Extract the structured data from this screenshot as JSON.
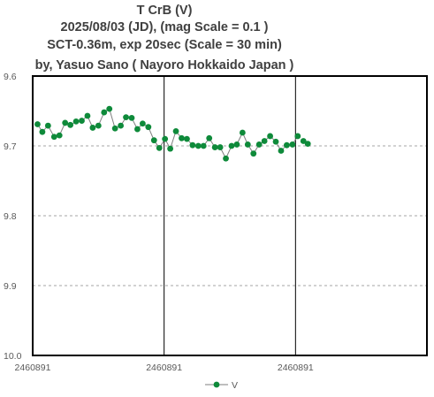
{
  "chart_data": {
    "type": "line",
    "title_lines": [
      "T CrB  (V)",
      "2025/08/03 (JD),   (mag Scale = 0.1 )",
      "SCT-0.36m, exp 20sec (Scale = 30 min)",
      "by, Yasuo Sano ( Nayoro Hokkaido Japan )"
    ],
    "xlabel": "",
    "ylabel": "",
    "y_reversed": true,
    "ylim": [
      9.6,
      10.0
    ],
    "y_ticks": [
      "9.6",
      "9.7",
      "9.8",
      "9.9",
      "10.0"
    ],
    "x_tick_labels": [
      "2460891",
      "2460891",
      "2460891"
    ],
    "xlim_minutes": [
      0,
      90
    ],
    "x_major_step_minutes": 30,
    "grid": "horizontal dashed, vertical solid",
    "legend": "bottom",
    "series": [
      {
        "name": "V",
        "color": "#0e8a3a",
        "x_minutes": [
          1.1,
          2.2,
          3.5,
          4.9,
          6.1,
          7.4,
          8.6,
          9.9,
          11.2,
          12.5,
          13.7,
          15.0,
          16.3,
          17.5,
          18.8,
          20.1,
          21.3,
          22.6,
          23.9,
          25.1,
          26.4,
          27.7,
          28.9,
          30.2,
          31.4,
          32.7,
          34.0,
          35.2,
          36.5,
          37.8,
          39.0,
          40.3,
          41.6,
          42.8,
          44.1,
          45.4,
          46.6,
          47.9,
          49.1,
          50.4,
          51.7,
          52.9,
          54.2,
          55.5,
          56.7,
          58.0,
          59.3,
          60.5
        ],
        "values": [
          9.669,
          9.68,
          9.671,
          9.687,
          9.685,
          9.667,
          9.67,
          9.665,
          9.664,
          9.657,
          9.674,
          9.671,
          9.652,
          9.647,
          9.675,
          9.671,
          9.659,
          9.66,
          9.676,
          9.668,
          9.673,
          9.692,
          9.703,
          9.69,
          9.704,
          9.679,
          9.689,
          9.69,
          9.699,
          9.7,
          9.7,
          9.689,
          9.702,
          9.702,
          9.718,
          9.7,
          9.698,
          9.681,
          9.698,
          9.711,
          9.698,
          9.693,
          9.686,
          9.694,
          9.707,
          9.699,
          9.698,
          9.686
        ]
      }
    ],
    "extra_points": [
      {
        "x_minutes": 61.8,
        "value": 9.693
      },
      {
        "x_minutes": 62.8,
        "value": 9.697
      }
    ]
  }
}
